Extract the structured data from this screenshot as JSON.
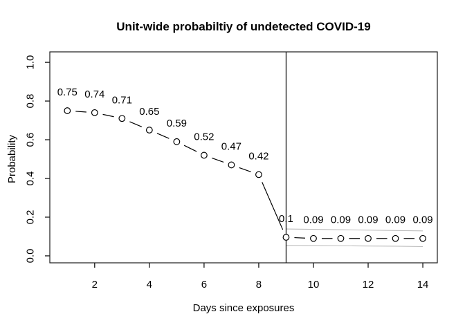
{
  "figure": {
    "background": "#ffffff"
  },
  "chart_data": {
    "type": "line",
    "title": "Unit-wide probabiltiy of undetected COVID-19",
    "xlabel": "Days since exposures",
    "ylabel": "Probability",
    "x": [
      1,
      2,
      3,
      4,
      5,
      6,
      7,
      8,
      9,
      10,
      11,
      12,
      13,
      14
    ],
    "y": [
      0.75,
      0.74,
      0.71,
      0.65,
      0.59,
      0.52,
      0.47,
      0.42,
      0.096,
      0.09,
      0.09,
      0.09,
      0.09,
      0.09
    ],
    "point_labels": [
      "0.75",
      "0.74",
      "0.71",
      "0.65",
      "0.59",
      "0.52",
      "0.47",
      "0.42",
      "0.1",
      "0.09",
      "0.09",
      "0.09",
      "0.09",
      "0.09"
    ],
    "x_ticks": [
      2,
      4,
      6,
      8,
      10,
      12,
      14
    ],
    "y_ticks": [
      "0.0",
      "0.2",
      "0.4",
      "0.6",
      "0.8",
      "1.0"
    ],
    "xlim": [
      0.36,
      14.53
    ],
    "ylim": [
      -0.036,
      1.054
    ],
    "vline_x": 9,
    "marker": "open-circle",
    "line_style": "points-with-segments",
    "grid": false,
    "legend": "none",
    "ci": {
      "x": [
        9,
        10,
        11,
        12,
        13,
        14
      ],
      "upper": [
        0.139,
        0.137,
        0.135,
        0.133,
        0.131,
        0.129
      ],
      "lower": [
        0.054,
        0.053,
        0.052,
        0.051,
        0.05,
        0.048
      ]
    },
    "colors": {
      "series": "#000000",
      "ci": "#bdbdbd",
      "vline": "#000000",
      "axis": "#000000"
    }
  }
}
